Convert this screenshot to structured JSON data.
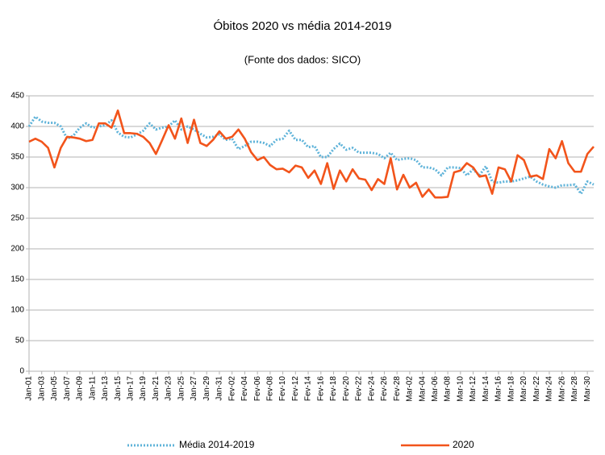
{
  "chart_data": {
    "type": "line",
    "title": "Óbitos 2020 vs média 2014-2019",
    "subtitle": "(Fonte dos dados: SICO)",
    "categories": [
      "Jan-01",
      null,
      "Jan-03",
      null,
      "Jan-05",
      null,
      "Jan-07",
      null,
      "Jan-09",
      null,
      "Jan-11",
      null,
      "Jan-13",
      null,
      "Jan-15",
      null,
      "Jan-17",
      null,
      "Jan-19",
      null,
      "Jan-21",
      null,
      "Jan-23",
      null,
      "Jan-25",
      null,
      "Jan-27",
      null,
      "Jan-29",
      null,
      "Jan-31",
      null,
      "Fev-02",
      null,
      "Fev-04",
      null,
      "Fev-06",
      null,
      "Fev-08",
      null,
      "Fev-10",
      null,
      "Fev-12",
      null,
      "Fev-14",
      null,
      "Fev-16",
      null,
      "Fev-18",
      null,
      "Fev-20",
      null,
      "Fev-22",
      null,
      "Fev-24",
      null,
      "Fev-26",
      null,
      "Fev-28",
      null,
      "Mar-02",
      null,
      "Mar-04",
      null,
      "Mar-06",
      null,
      "Mar-08",
      null,
      "Mar-10",
      null,
      "Mar-12",
      null,
      "Mar-14",
      null,
      "Mar-16",
      null,
      "Mar-18",
      null,
      "Mar-20",
      null,
      "Mar-22",
      null,
      "Mar-24",
      null,
      "Mar-26",
      null,
      "Mar-28",
      null,
      "Mar-30",
      null
    ],
    "series": [
      {
        "name": "Média 2014-2019",
        "color": "#5fb3d9",
        "dashed": true,
        "values": [
          400,
          416,
          408,
          406,
          406,
          400,
          380,
          385,
          398,
          405,
          398,
          400,
          402,
          410,
          390,
          383,
          382,
          387,
          393,
          405,
          395,
          398,
          400,
          410,
          395,
          400,
          395,
          388,
          382,
          383,
          387,
          378,
          380,
          363,
          368,
          375,
          375,
          373,
          368,
          378,
          380,
          393,
          378,
          378,
          366,
          368,
          350,
          350,
          363,
          372,
          362,
          365,
          357,
          357,
          357,
          355,
          348,
          357,
          345,
          347,
          348,
          345,
          333,
          333,
          330,
          320,
          333,
          333,
          332,
          320,
          330,
          320,
          335,
          310,
          308,
          310,
          310,
          312,
          315,
          318,
          310,
          305,
          302,
          300,
          304,
          304,
          305,
          290,
          310,
          305
        ]
      },
      {
        "name": "2020",
        "color": "#f2541b",
        "dashed": false,
        "values": [
          375,
          380,
          375,
          365,
          333,
          365,
          383,
          382,
          380,
          376,
          378,
          405,
          405,
          398,
          426,
          389,
          389,
          388,
          383,
          373,
          355,
          378,
          402,
          380,
          413,
          373,
          411,
          373,
          368,
          378,
          392,
          380,
          383,
          395,
          380,
          358,
          345,
          350,
          337,
          330,
          331,
          325,
          336,
          333,
          316,
          328,
          306,
          340,
          298,
          328,
          310,
          330,
          315,
          313,
          296,
          314,
          306,
          348,
          297,
          321,
          300,
          308,
          285,
          297,
          284,
          284,
          285,
          325,
          328,
          340,
          333,
          318,
          320,
          290,
          333,
          330,
          310,
          353,
          345,
          318,
          320,
          314,
          363,
          348,
          376,
          340,
          326,
          326,
          355,
          367
        ]
      }
    ],
    "ylim": [
      0,
      450
    ],
    "yticks": [
      0,
      50,
      100,
      150,
      200,
      250,
      300,
      350,
      400,
      450
    ],
    "grid": true,
    "legend": "bottom"
  }
}
